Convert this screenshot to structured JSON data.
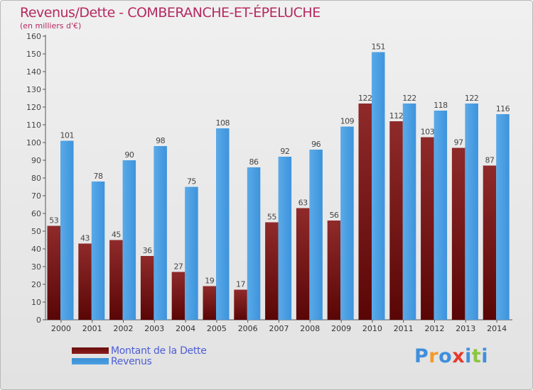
{
  "chart_data": {
    "type": "bar",
    "title": "Revenus/Dette - COMBERANCHE-ET-ÉPELUCHE",
    "subtitle": "(en milliers d'€)",
    "categories": [
      "2000",
      "2001",
      "2002",
      "2003",
      "2004",
      "2005",
      "2006",
      "2007",
      "2008",
      "2009",
      "2010",
      "2011",
      "2012",
      "2013",
      "2014"
    ],
    "series": [
      {
        "name": "Montant de la Dette",
        "color": "#8b1c1c",
        "values": [
          53,
          43,
          45,
          36,
          27,
          19,
          17,
          55,
          63,
          56,
          122,
          112,
          103,
          97,
          87
        ]
      },
      {
        "name": "Revenus",
        "color": "#4a9fe3",
        "values": [
          101,
          78,
          90,
          98,
          75,
          108,
          86,
          92,
          96,
          109,
          151,
          122,
          118,
          122,
          116
        ]
      }
    ],
    "ylim": [
      0,
      160
    ],
    "yticks": [
      0,
      10,
      20,
      30,
      40,
      50,
      60,
      70,
      80,
      90,
      100,
      110,
      120,
      130,
      140,
      150,
      160
    ],
    "grid": false,
    "legend_position": "bottom-left"
  },
  "legend": [
    {
      "label": "Montant de la Dette",
      "color": "#8b1c1c"
    },
    {
      "label": "Revenus",
      "color": "#4a9fe3"
    }
  ],
  "logo": {
    "text": "Proxiti",
    "letters": [
      {
        "ch": "P",
        "color": "#3f8fdc"
      },
      {
        "ch": "r",
        "color": "#f39a2b"
      },
      {
        "ch": "o",
        "color": "#3f8fdc"
      },
      {
        "ch": "x",
        "color": "#e63a2e"
      },
      {
        "ch": "i",
        "color": "#3f8fdc"
      },
      {
        "ch": "t",
        "color": "#8cc63f"
      },
      {
        "ch": "i",
        "color": "#3f8fdc"
      }
    ]
  }
}
